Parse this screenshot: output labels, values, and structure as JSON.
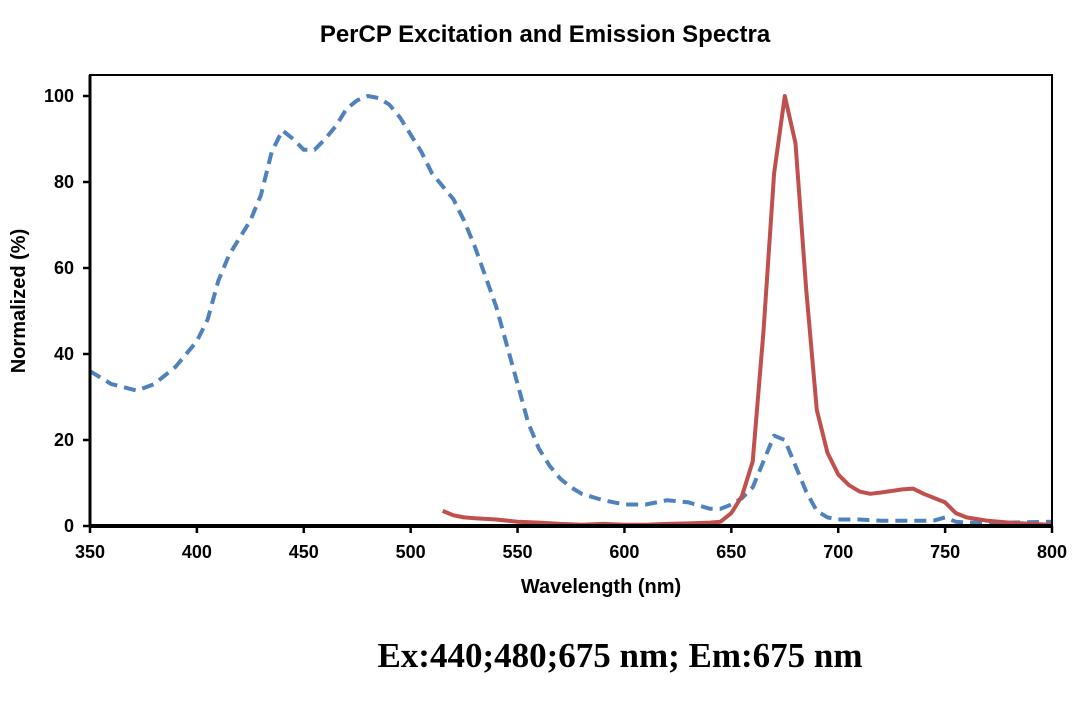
{
  "chart_data": {
    "type": "line",
    "title": "PerCP Excitation and Emission Spectra",
    "xlabel": "Wavelength (nm)",
    "ylabel": "Normalized (%)",
    "xlim": [
      350,
      800
    ],
    "ylim": [
      0,
      100
    ],
    "xticks": [
      350,
      400,
      450,
      500,
      550,
      600,
      650,
      700,
      750,
      800
    ],
    "yticks": [
      0,
      20,
      40,
      60,
      80,
      100
    ],
    "grid": false,
    "legend": "none",
    "series": [
      {
        "style": "dashed",
        "color": "#4F81BD",
        "x": [
          350,
          360,
          372,
          380,
          390,
          400,
          405,
          410,
          415,
          420,
          425,
          430,
          435,
          440,
          445,
          450,
          455,
          460,
          465,
          470,
          475,
          480,
          485,
          490,
          495,
          500,
          505,
          510,
          515,
          520,
          525,
          530,
          535,
          540,
          545,
          550,
          555,
          560,
          565,
          570,
          575,
          580,
          590,
          600,
          610,
          620,
          630,
          640,
          645,
          650,
          655,
          660,
          665,
          670,
          675,
          680,
          685,
          690,
          695,
          700,
          710,
          720,
          740,
          745,
          750,
          755,
          760,
          780,
          800
        ],
        "y": [
          36,
          33,
          31.5,
          33,
          37,
          43,
          48,
          57,
          63,
          67,
          71,
          77,
          87,
          92,
          90,
          87.5,
          87.5,
          90,
          93,
          97,
          99,
          100,
          99.5,
          98,
          95,
          91,
          87,
          82,
          79,
          76,
          71,
          65,
          58,
          51,
          42,
          33,
          24,
          18,
          14,
          11,
          9,
          7.5,
          6,
          5,
          5,
          6,
          5.5,
          4,
          4,
          5,
          6.5,
          9,
          15,
          21,
          20,
          14,
          8,
          3.5,
          2,
          1.5,
          1.5,
          1.2,
          1.2,
          1.3,
          2,
          1,
          0.8,
          0.8,
          1
        ]
      },
      {
        "style": "solid",
        "color": "#C0504D",
        "x": [
          515,
          520,
          525,
          530,
          540,
          550,
          560,
          570,
          580,
          590,
          600,
          610,
          620,
          630,
          640,
          645,
          650,
          655,
          660,
          665,
          670,
          675,
          680,
          685,
          690,
          695,
          700,
          705,
          710,
          715,
          720,
          730,
          735,
          740,
          750,
          755,
          760,
          770,
          780,
          790,
          800
        ],
        "y": [
          3.5,
          2.5,
          2,
          1.8,
          1.5,
          1,
          0.8,
          0.5,
          0.3,
          0.5,
          0.3,
          0.3,
          0.5,
          0.6,
          0.8,
          1,
          3,
          7,
          15,
          45,
          82,
          100,
          89,
          55,
          27,
          17,
          12,
          9.5,
          8,
          7.5,
          7.8,
          8.5,
          8.7,
          7.5,
          5.5,
          3,
          2,
          1.2,
          0.8,
          0.5,
          0.3
        ]
      }
    ]
  },
  "caption": "Ex:440;480;675 nm; Em:675 nm"
}
